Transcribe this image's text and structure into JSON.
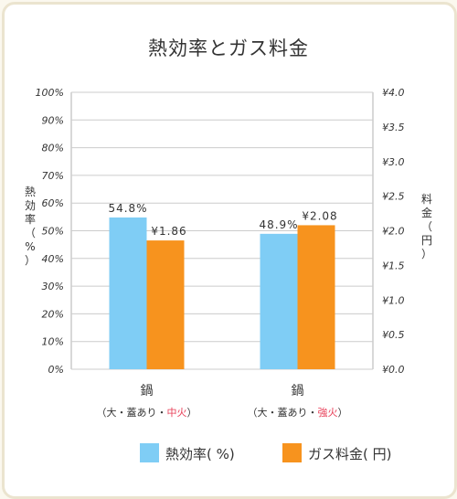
{
  "colors": {
    "efficiency": "#7fcdf5",
    "cost": "#f7931e",
    "grid": "#cccccc",
    "emphasis": "#e8415a"
  },
  "chart_data": {
    "type": "bar",
    "title": "熱効率とガス料金",
    "categories": [
      "鍋",
      "鍋"
    ],
    "category_subs": [
      {
        "open": "（",
        "plain": "大・蓋あり・",
        "red": "中火",
        "close": "）"
      },
      {
        "open": "（",
        "plain": "大・蓋あり・",
        "red": "強火",
        "close": "）"
      }
    ],
    "series": [
      {
        "name": "熱効率( %)",
        "axis": "left",
        "values": [
          54.8,
          48.9
        ],
        "labels": [
          "54.8%",
          "48.9%"
        ]
      },
      {
        "name": "ガス料金( 円)",
        "axis": "right",
        "values": [
          1.86,
          2.08
        ],
        "labels": [
          "¥1.86",
          "¥2.08"
        ]
      }
    ],
    "ylabel": "熱効率（%）",
    "y2label": "料金（円）",
    "ylim": [
      0,
      100
    ],
    "y2lim": [
      0,
      4.0
    ],
    "yticks": [
      "0%",
      "10%",
      "20%",
      "30%",
      "40%",
      "50%",
      "60%",
      "70%",
      "80%",
      "90%",
      "100%"
    ],
    "y2ticks": [
      "¥0.0",
      "¥0.5",
      "¥1.0",
      "¥1.5",
      "¥2.0",
      "¥2.5",
      "¥3.0",
      "¥3.5",
      "¥4.0"
    ],
    "grid": true,
    "legend_position": "bottom-right"
  }
}
